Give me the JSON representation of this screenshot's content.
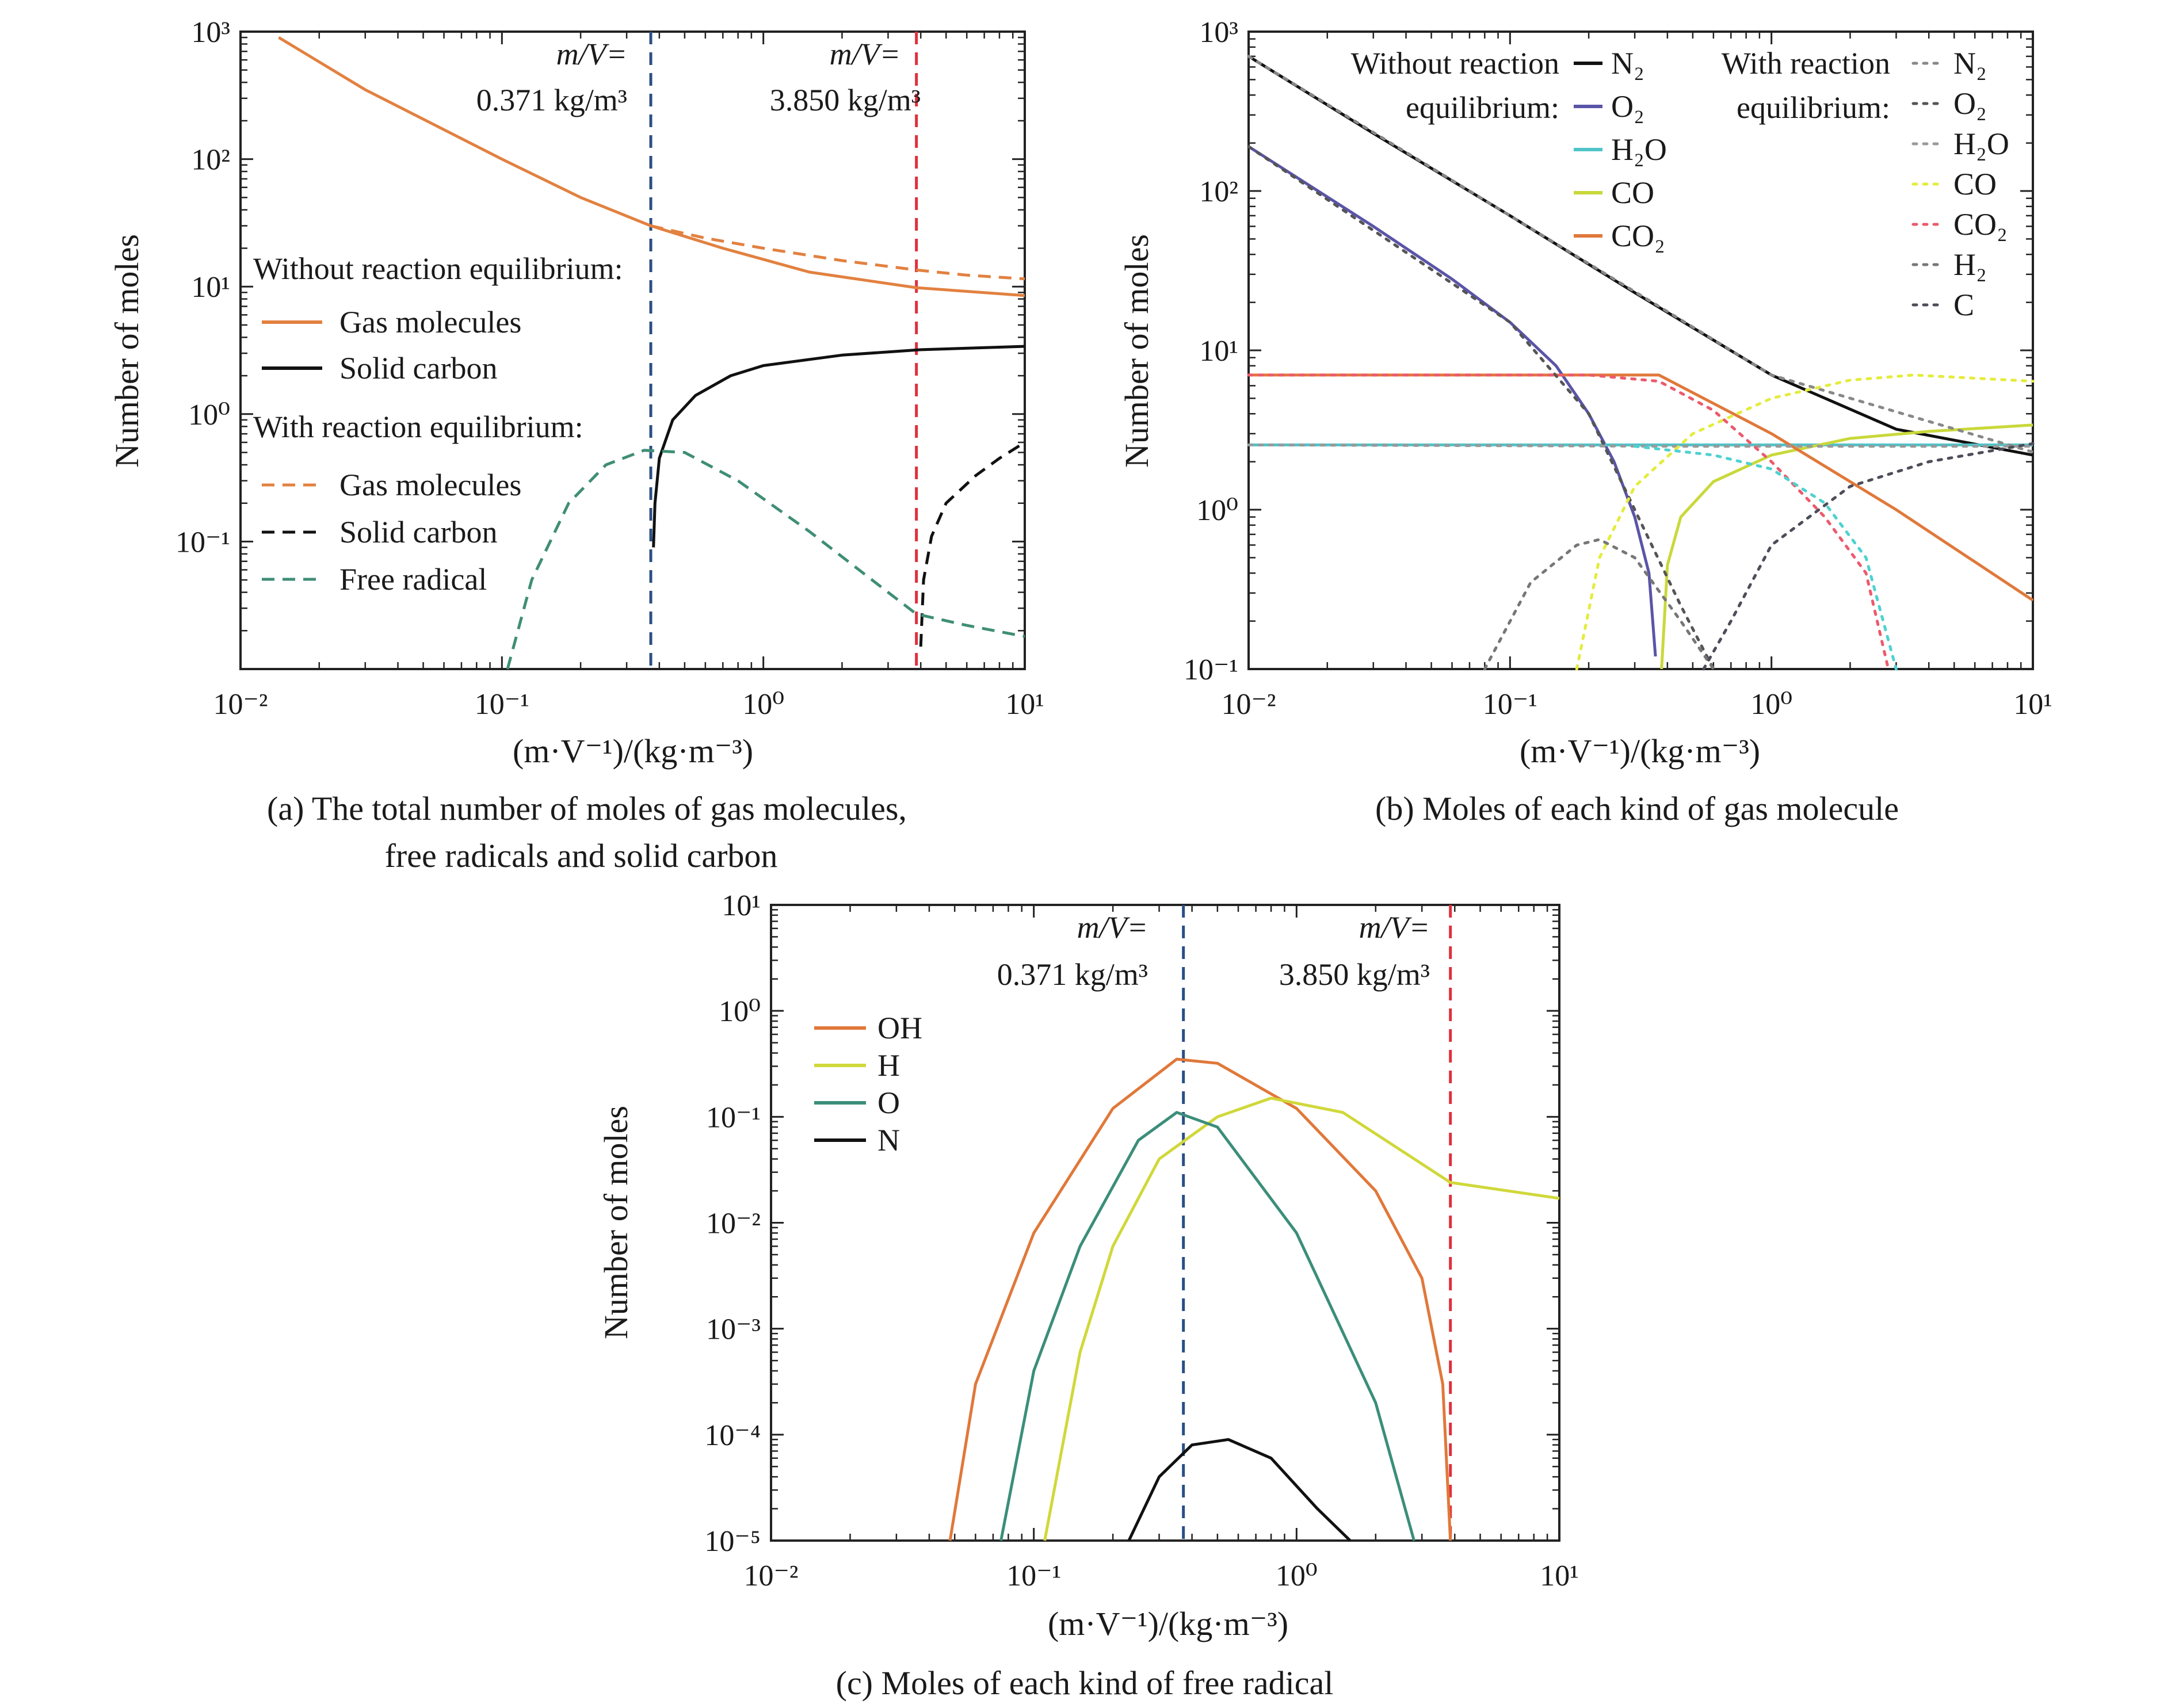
{
  "figure": {
    "captions": [
      "(a) The total number of moles of gas molecules,",
      "free radicals and solid carbon",
      "(b) Moles of each kind of gas molecule",
      "(c) Moles of each kind of free radical"
    ]
  },
  "chart_data": [
    {
      "id": "a",
      "type": "line",
      "xscale": "log",
      "yscale": "log",
      "xlim": [
        0.01,
        10
      ],
      "ylim": [
        0.01,
        1000
      ],
      "xlabel": "(m·V⁻¹)/(kg·m⁻³)",
      "ylabel": "Number of moles",
      "xticks": [
        "10⁻²",
        "10⁻¹",
        "10⁰",
        "10¹"
      ],
      "yticks": [
        "10⁻¹",
        "10⁰",
        "10¹",
        "10²",
        "10³"
      ],
      "grid": false,
      "legend_position": "left-middle",
      "legend_groups": [
        {
          "title": "Without reaction equilibrium:",
          "style": "solid",
          "entries": [
            "Gas molecules",
            "Solid carbon"
          ]
        },
        {
          "title": "With reaction equilibrium:",
          "style": "dashed",
          "entries": [
            "Gas molecules",
            "Solid carbon",
            "Free radical"
          ]
        }
      ],
      "vlines": [
        {
          "x": 0.371,
          "label_top": "m/V=",
          "label_value": "0.371 kg/m³",
          "color": "#2a4f84"
        },
        {
          "x": 3.85,
          "label_top": "m/V=",
          "label_value": "3.850 kg/m³",
          "color": "#e0303c"
        }
      ],
      "series": [
        {
          "name": "Gas molecules",
          "group": "Without reaction equilibrium",
          "color": "#e28140",
          "dash": "solid",
          "points": [
            [
              0.014,
              900
            ],
            [
              0.03,
              350
            ],
            [
              0.1,
              100
            ],
            [
              0.2,
              50
            ],
            [
              0.371,
              30
            ],
            [
              0.7,
              20
            ],
            [
              1.5,
              13
            ],
            [
              3.85,
              9.8
            ],
            [
              10,
              8.5
            ]
          ]
        },
        {
          "name": "Solid carbon",
          "group": "Without reaction equilibrium",
          "color": "#111111",
          "dash": "solid",
          "points": [
            [
              0.38,
              0.09
            ],
            [
              0.385,
              0.2
            ],
            [
              0.4,
              0.45
            ],
            [
              0.45,
              0.9
            ],
            [
              0.55,
              1.4
            ],
            [
              0.75,
              2.0
            ],
            [
              1.0,
              2.4
            ],
            [
              2.0,
              2.9
            ],
            [
              4.0,
              3.2
            ],
            [
              10,
              3.4
            ]
          ]
        },
        {
          "name": "Gas molecules",
          "group": "With reaction equilibrium",
          "color": "#e28140",
          "dash": "dashed",
          "points": [
            [
              0.371,
              30
            ],
            [
              0.6,
              24
            ],
            [
              1.0,
              20
            ],
            [
              2.0,
              16
            ],
            [
              3.85,
              13.5
            ],
            [
              6,
              12.3
            ],
            [
              10,
              11.5
            ]
          ]
        },
        {
          "name": "Solid carbon",
          "group": "With reaction equilibrium",
          "color": "#111111",
          "dash": "dashed",
          "points": [
            [
              4.0,
              0.015
            ],
            [
              4.1,
              0.05
            ],
            [
              4.4,
              0.11
            ],
            [
              5.0,
              0.2
            ],
            [
              6.5,
              0.33
            ],
            [
              8.0,
              0.45
            ],
            [
              10,
              0.6
            ]
          ]
        },
        {
          "name": "Free radical",
          "group": "With reaction equilibrium",
          "color": "#3f8e76",
          "dash": "dashed",
          "points": [
            [
              0.105,
              0.01
            ],
            [
              0.13,
              0.05
            ],
            [
              0.18,
              0.2
            ],
            [
              0.25,
              0.4
            ],
            [
              0.35,
              0.52
            ],
            [
              0.5,
              0.5
            ],
            [
              0.8,
              0.3
            ],
            [
              1.5,
              0.12
            ],
            [
              3.0,
              0.04
            ],
            [
              3.85,
              0.027
            ],
            [
              6.0,
              0.022
            ],
            [
              10,
              0.018
            ]
          ]
        }
      ]
    },
    {
      "id": "b",
      "type": "line",
      "xscale": "log",
      "yscale": "log",
      "xlim": [
        0.01,
        10
      ],
      "ylim": [
        0.1,
        1000
      ],
      "xlabel": "(m·V⁻¹)/(kg·m⁻³)",
      "ylabel": "Number of moles",
      "xticks": [
        "10⁻²",
        "10⁻¹",
        "10⁰",
        "10¹"
      ],
      "yticks": [
        "10⁻¹",
        "10⁰",
        "10¹",
        "10²",
        "10³"
      ],
      "grid": false,
      "legend_position": "top-right",
      "legend_groups": [
        {
          "title": "Without reaction equilibrium:",
          "style": "solid",
          "entries": [
            "N₂",
            "O₂",
            "H₂O",
            "CO",
            "CO₂"
          ]
        },
        {
          "title": "With reaction equilibrium:",
          "style": "dotted",
          "entries": [
            "N₂",
            "O₂",
            "H₂O",
            "CO",
            "CO₂",
            "H₂",
            "C"
          ]
        }
      ],
      "series": [
        {
          "name": "N₂",
          "group": "Without reaction equilibrium",
          "color": "#111111",
          "dash": "solid",
          "points": [
            [
              0.01,
              700
            ],
            [
              0.03,
              230
            ],
            [
              0.1,
              70
            ],
            [
              0.3,
              23
            ],
            [
              1.0,
              7
            ],
            [
              3.0,
              3.2
            ],
            [
              10,
              2.2
            ]
          ]
        },
        {
          "name": "O₂",
          "group": "Without reaction equilibrium",
          "color": "#5a54a8",
          "dash": "solid",
          "points": [
            [
              0.01,
              190
            ],
            [
              0.03,
              60
            ],
            [
              0.06,
              28
            ],
            [
              0.1,
              15
            ],
            [
              0.15,
              8
            ],
            [
              0.2,
              4
            ],
            [
              0.25,
              2.0
            ],
            [
              0.3,
              0.9
            ],
            [
              0.34,
              0.4
            ],
            [
              0.36,
              0.12
            ]
          ]
        },
        {
          "name": "H₂O",
          "group": "Without reaction equilibrium",
          "color": "#4fc4c9",
          "dash": "solid",
          "points": [
            [
              0.01,
              2.55
            ],
            [
              10,
              2.55
            ]
          ]
        },
        {
          "name": "CO",
          "group": "Without reaction equilibrium",
          "color": "#c9d83a",
          "dash": "solid",
          "points": [
            [
              0.38,
              0.1
            ],
            [
              0.4,
              0.45
            ],
            [
              0.45,
              0.9
            ],
            [
              0.6,
              1.5
            ],
            [
              1.0,
              2.2
            ],
            [
              2.0,
              2.8
            ],
            [
              4.0,
              3.1
            ],
            [
              10,
              3.4
            ]
          ]
        },
        {
          "name": "CO₂",
          "group": "Without reaction equilibrium",
          "color": "#e0783a",
          "dash": "solid",
          "points": [
            [
              0.01,
              7
            ],
            [
              0.371,
              7
            ],
            [
              1.0,
              3.0
            ],
            [
              3.0,
              1.0
            ],
            [
              10,
              0.27
            ]
          ]
        },
        {
          "name": "N₂",
          "group": "With reaction equilibrium",
          "color": "#888888",
          "dash": "dotted",
          "points": [
            [
              0.01,
              700
            ],
            [
              0.1,
              70
            ],
            [
              1.0,
              7
            ],
            [
              10,
              2.3
            ]
          ]
        },
        {
          "name": "O₂",
          "group": "With reaction equilibrium",
          "color": "#555555",
          "dash": "dotted",
          "points": [
            [
              0.01,
              190
            ],
            [
              0.1,
              15
            ],
            [
              0.2,
              4
            ],
            [
              0.3,
              1.0
            ],
            [
              0.45,
              0.25
            ],
            [
              0.6,
              0.1
            ]
          ]
        },
        {
          "name": "H₂O",
          "group": "With reaction equilibrium",
          "color": "#9a9a9a",
          "dash": "dotted",
          "points": [
            [
              0.01,
              2.55
            ],
            [
              0.5,
              2.5
            ],
            [
              1.0,
              2.5
            ],
            [
              10,
              2.5
            ]
          ]
        },
        {
          "name": "CO",
          "group": "With reaction equilibrium",
          "color": "#e4ec3c",
          "dash": "dotted",
          "points": [
            [
              0.18,
              0.1
            ],
            [
              0.22,
              0.5
            ],
            [
              0.3,
              1.4
            ],
            [
              0.5,
              3.0
            ],
            [
              1.0,
              5.0
            ],
            [
              2.0,
              6.5
            ],
            [
              3.5,
              7.0
            ],
            [
              10,
              6.4
            ]
          ]
        },
        {
          "name": "CO₂",
          "group": "With reaction equilibrium",
          "color": "#ec5a6c",
          "dash": "dotted",
          "points": [
            [
              0.01,
              7
            ],
            [
              0.2,
              7
            ],
            [
              0.371,
              6.4
            ],
            [
              0.6,
              4.2
            ],
            [
              1.0,
              2.0
            ],
            [
              1.6,
              0.9
            ],
            [
              2.3,
              0.4
            ],
            [
              2.8,
              0.1
            ]
          ]
        },
        {
          "name": "H₂",
          "group": "With reaction equilibrium",
          "color": "#777777",
          "dash": "dotted",
          "points": [
            [
              0.08,
              0.1
            ],
            [
              0.12,
              0.35
            ],
            [
              0.18,
              0.6
            ],
            [
              0.22,
              0.65
            ],
            [
              0.3,
              0.5
            ],
            [
              0.45,
              0.2
            ],
            [
              0.6,
              0.1
            ]
          ]
        },
        {
          "name": "C",
          "group": "With reaction equilibrium",
          "color": "#4d4d5a",
          "dash": "dotted",
          "points": [
            [
              0.55,
              0.1
            ],
            [
              0.7,
              0.2
            ],
            [
              1.0,
              0.6
            ],
            [
              2.0,
              1.4
            ],
            [
              4.0,
              2.0
            ],
            [
              10,
              2.6
            ]
          ]
        },
        {
          "name": "",
          "group": "With reaction equilibrium (H₂O tail)",
          "color": "#4fd1d1",
          "dash": "dotted",
          "points": [
            [
              0.3,
              2.5
            ],
            [
              0.6,
              2.2
            ],
            [
              1.0,
              1.8
            ],
            [
              1.6,
              1.1
            ],
            [
              2.3,
              0.5
            ],
            [
              3.0,
              0.1
            ]
          ]
        }
      ]
    },
    {
      "id": "c",
      "type": "line",
      "xscale": "log",
      "yscale": "log",
      "xlim": [
        0.01,
        10
      ],
      "ylim": [
        1e-05,
        10
      ],
      "xlabel": "(m·V⁻¹)/(kg·m⁻³)",
      "ylabel": "Number of moles",
      "xticks": [
        "10⁻²",
        "10⁻¹",
        "10⁰",
        "10¹"
      ],
      "yticks": [
        "10⁻⁵",
        "10⁻⁴",
        "10⁻³",
        "10⁻²",
        "10⁻¹",
        "10⁰",
        "10¹"
      ],
      "grid": false,
      "legend_position": "top-left",
      "vlines": [
        {
          "x": 0.371,
          "label_top": "m/V=",
          "label_value": "0.371 kg/m³",
          "color": "#2a4f84"
        },
        {
          "x": 3.85,
          "label_top": "m/V=",
          "label_value": "3.850 kg/m³",
          "color": "#e0303c"
        }
      ],
      "series": [
        {
          "name": "OH",
          "color": "#e0783a",
          "dash": "solid",
          "points": [
            [
              0.048,
              1e-05
            ],
            [
              0.06,
              0.0003
            ],
            [
              0.1,
              0.008
            ],
            [
              0.2,
              0.12
            ],
            [
              0.35,
              0.35
            ],
            [
              0.5,
              0.32
            ],
            [
              1.0,
              0.12
            ],
            [
              2.0,
              0.02
            ],
            [
              3.0,
              0.003
            ],
            [
              3.6,
              0.0003
            ],
            [
              3.85,
              1e-05
            ]
          ]
        },
        {
          "name": "H",
          "color": "#d0d83a",
          "dash": "solid",
          "points": [
            [
              0.11,
              1e-05
            ],
            [
              0.15,
              0.0006
            ],
            [
              0.2,
              0.006
            ],
            [
              0.3,
              0.04
            ],
            [
              0.5,
              0.1
            ],
            [
              0.8,
              0.15
            ],
            [
              1.5,
              0.11
            ],
            [
              3.85,
              0.024
            ],
            [
              10,
              0.017
            ]
          ]
        },
        {
          "name": "O",
          "color": "#3b8e7a",
          "dash": "solid",
          "points": [
            [
              0.075,
              1e-05
            ],
            [
              0.1,
              0.0004
            ],
            [
              0.15,
              0.006
            ],
            [
              0.25,
              0.06
            ],
            [
              0.35,
              0.11
            ],
            [
              0.5,
              0.08
            ],
            [
              1.0,
              0.008
            ],
            [
              2.0,
              0.0002
            ],
            [
              2.8,
              1e-05
            ]
          ]
        },
        {
          "name": "N",
          "color": "#111111",
          "dash": "solid",
          "points": [
            [
              0.23,
              1e-05
            ],
            [
              0.3,
              4e-05
            ],
            [
              0.4,
              8e-05
            ],
            [
              0.55,
              9e-05
            ],
            [
              0.8,
              6e-05
            ],
            [
              1.2,
              2e-05
            ],
            [
              1.6,
              1e-05
            ]
          ]
        }
      ]
    }
  ]
}
